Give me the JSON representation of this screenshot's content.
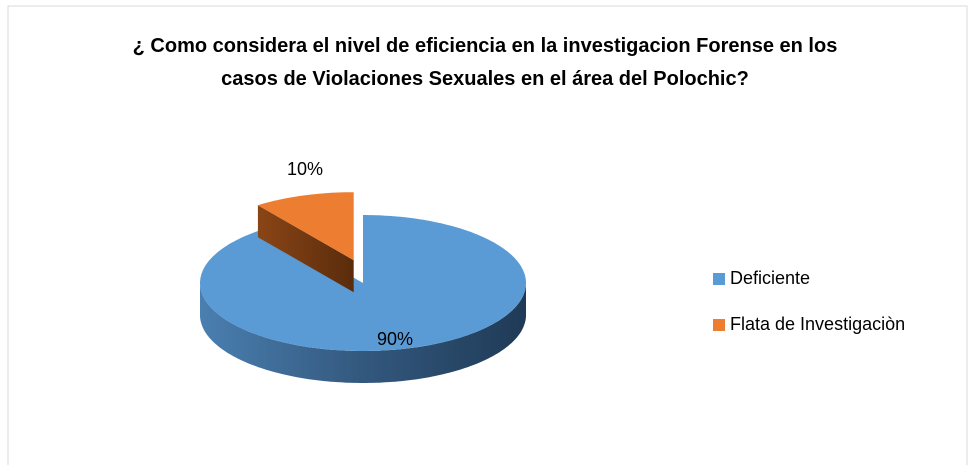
{
  "chart_data": {
    "type": "pie",
    "title": "¿ Como considera el nivel de eficiencia en la investigacion Forense en los casos de Violaciones Sexuales en el área del Polochic?",
    "categories": [
      "Deficiente",
      "Flata de Investigaciòn"
    ],
    "values": [
      90,
      10
    ],
    "value_labels": [
      "90%",
      "10%"
    ],
    "colors": [
      "#5b9bd5",
      "#ed7d31"
    ],
    "legend": "right"
  }
}
